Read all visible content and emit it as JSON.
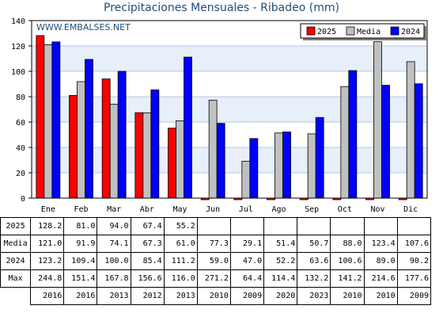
{
  "chart_data": {
    "type": "bar",
    "title": "Precipitaciones Mensuales - Ribadeo (mm)",
    "watermark": "WWW.EMBALSES.NET",
    "categories": [
      "Ene",
      "Feb",
      "Mar",
      "Abr",
      "May",
      "Jun",
      "Jul",
      "Ago",
      "Sep",
      "Oct",
      "Nov",
      "Dic"
    ],
    "ylim": [
      0,
      140
    ],
    "yticks": [
      0,
      20,
      40,
      60,
      80,
      100,
      120,
      140
    ],
    "legend_position": "top-right",
    "series": [
      {
        "name": "2025",
        "color": "#ff0000",
        "values": [
          128.2,
          81.0,
          94.0,
          67.4,
          55.2,
          0,
          0,
          0,
          0,
          0,
          0,
          0
        ]
      },
      {
        "name": "Media",
        "color": "#c0c0c0",
        "values": [
          121.0,
          91.9,
          74.1,
          67.3,
          61.0,
          77.3,
          29.1,
          51.4,
          50.7,
          88.0,
          123.4,
          107.6
        ]
      },
      {
        "name": "2024",
        "color": "#0000ff",
        "values": [
          123.2,
          109.4,
          100.0,
          85.4,
          111.2,
          59.0,
          47.0,
          52.2,
          63.6,
          100.6,
          89.0,
          90.2
        ]
      }
    ]
  },
  "table": {
    "rows": [
      {
        "label": "2025",
        "cells": [
          "128.2",
          "81.0",
          "94.0",
          "67.4",
          "55.2",
          "",
          "",
          "",
          "",
          "",
          "",
          ""
        ]
      },
      {
        "label": "Media",
        "cells": [
          "121.0",
          "91.9",
          "74.1",
          "67.3",
          "61.0",
          "77.3",
          "29.1",
          "51.4",
          "50.7",
          "88.0",
          "123.4",
          "107.6"
        ]
      },
      {
        "label": "2024",
        "cells": [
          "123.2",
          "109.4",
          "100.0",
          "85.4",
          "111.2",
          "59.0",
          "47.0",
          "52.2",
          "63.6",
          "100.6",
          "89.0",
          "90.2"
        ]
      },
      {
        "label": "Max",
        "cells": [
          "244.8",
          "151.4",
          "167.8",
          "156.6",
          "116.0",
          "271.2",
          "64.4",
          "114.4",
          "132.2",
          "141.2",
          "214.6",
          "177.6"
        ]
      },
      {
        "label": "",
        "cells": [
          "2016",
          "2016",
          "2013",
          "2012",
          "2013",
          "2010",
          "2009",
          "2020",
          "2023",
          "2010",
          "2010",
          "2009"
        ]
      }
    ]
  }
}
